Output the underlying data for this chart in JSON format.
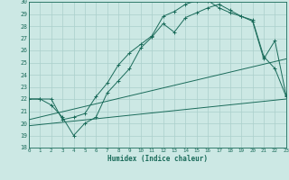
{
  "xlabel": "Humidex (Indice chaleur)",
  "bg_color": "#cce8e4",
  "grid_color": "#aacfcb",
  "line_color": "#1a6b5a",
  "xlim": [
    0,
    23
  ],
  "ylim": [
    18,
    30
  ],
  "xticks": [
    0,
    1,
    2,
    3,
    4,
    5,
    6,
    7,
    8,
    9,
    10,
    11,
    12,
    13,
    14,
    15,
    16,
    17,
    18,
    19,
    20,
    21,
    22,
    23
  ],
  "yticks": [
    18,
    19,
    20,
    21,
    22,
    23,
    24,
    25,
    26,
    27,
    28,
    29,
    30
  ],
  "line1_x": [
    0,
    1,
    2,
    3,
    4,
    5,
    6,
    7,
    8,
    9,
    10,
    11,
    12,
    13,
    14,
    15,
    16,
    17,
    18,
    19,
    20,
    21,
    22,
    23
  ],
  "line1_y": [
    22,
    22,
    21.5,
    20.5,
    19,
    20,
    20.5,
    22.5,
    23.5,
    24.5,
    26.2,
    27.1,
    28.2,
    27.5,
    28.7,
    29.1,
    29.5,
    29.8,
    29.3,
    28.8,
    28.4,
    25.3,
    26.8,
    22.3
  ],
  "line2_x": [
    0,
    1,
    2,
    3,
    4,
    5,
    6,
    7,
    8,
    9,
    10,
    11,
    12,
    13,
    14,
    15,
    16,
    17,
    18,
    19,
    20,
    21,
    22,
    23
  ],
  "line2_y": [
    22,
    22,
    22,
    20.3,
    20.5,
    20.8,
    22.2,
    23.3,
    24.8,
    25.8,
    26.5,
    27.2,
    28.8,
    29.2,
    29.8,
    30.1,
    30.1,
    29.5,
    29.1,
    28.8,
    28.5,
    25.5,
    24.5,
    22.2
  ],
  "line3_x": [
    0,
    23
  ],
  "line3_y": [
    20.3,
    25.3
  ],
  "line4_x": [
    0,
    23
  ],
  "line4_y": [
    19.8,
    22.0
  ]
}
